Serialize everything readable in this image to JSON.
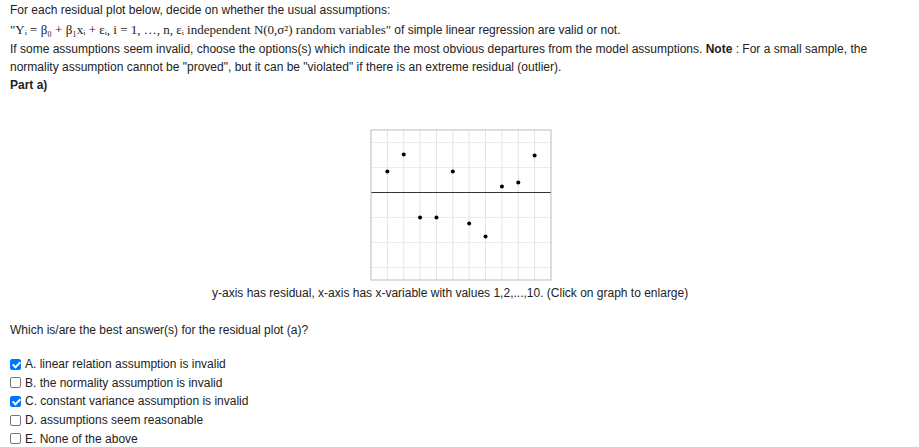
{
  "header": {
    "intro": "For each residual plot below, decide on whether the usual assumptions:",
    "model": "\"Yᵢ = β₀ + β₁xᵢ + εᵢ, i = 1, …, n, εᵢ independent N(0,σ²) random variables\"",
    "model_tail": " of simple linear regression are valid or not.",
    "instruction": "If some assumptions seem invalid, choose the options(s) which indicate the most obvious departures from the model assumptions. ",
    "note_label": "Note",
    "note_text": " : For a small sample, the",
    "note_cont": "normality assumption cannot be \"proved\", but it can be \"violated\" if there is an extreme residual (outlier).",
    "part": "Part a)"
  },
  "chart_data": {
    "type": "scatter",
    "x": [
      1,
      2,
      3,
      4,
      5,
      6,
      7,
      8,
      9,
      10
    ],
    "values": [
      0.42,
      0.76,
      -0.5,
      -0.5,
      0.42,
      -0.62,
      -0.88,
      0.12,
      0.2,
      0.74
    ],
    "xlim": [
      0,
      11
    ],
    "ylim": [
      -1.75,
      1.25
    ],
    "xticks": [
      1,
      2,
      3,
      4,
      5,
      6,
      7,
      8,
      9,
      10
    ],
    "yticks": [
      -1.5,
      -1,
      -0.5,
      0,
      0.5,
      1
    ],
    "grid": true,
    "tick_labels": false,
    "color": "#000000",
    "marker": "circle"
  },
  "caption": "y-axis has residual, x-axis has x-variable with values 1,2,...,10. (Click on graph to enlarge)",
  "question": "Which is/are the best answer(s) for the residual plot (a)?",
  "options": [
    {
      "label": "A. linear relation assumption is invalid",
      "checked": true
    },
    {
      "label": "B. the normality assumption is invalid",
      "checked": false
    },
    {
      "label": "C. constant variance assumption is invalid",
      "checked": true
    },
    {
      "label": "D. assumptions seem reasonable",
      "checked": false
    },
    {
      "label": "E. None of the above",
      "checked": false
    }
  ]
}
